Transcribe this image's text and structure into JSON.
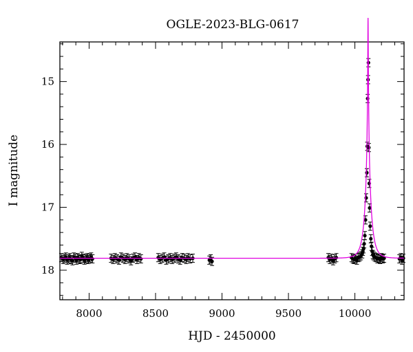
{
  "chart_data": {
    "type": "scatter",
    "title": "OGLE-2023-BLG-0617",
    "xlabel": "HJD - 2450000",
    "ylabel": "I magnitude",
    "xlim": [
      7780,
      10370
    ],
    "ylim": [
      18.47,
      14.37
    ],
    "y_inverted": true,
    "x_ticks": [
      8000,
      8500,
      9000,
      9500,
      10000
    ],
    "y_ticks": [
      15,
      16,
      17,
      18
    ],
    "grid": false,
    "colors": {
      "points": "#000000",
      "model": "#e000e0",
      "frame": "#000000"
    },
    "baseline_mag": 17.81,
    "series": [
      {
        "kind": "points",
        "x": [
          7790,
          7805,
          7815,
          7825,
          7835,
          7845,
          7855,
          7865,
          7875,
          7885,
          7895,
          7905,
          7915,
          7925,
          7935,
          7945,
          7955,
          7965,
          7975,
          7985,
          7995,
          8005,
          8015,
          8025,
          8165,
          8180,
          8195,
          8210,
          8225,
          8240,
          8255,
          8270,
          8285,
          8300,
          8315,
          8330,
          8345,
          8360,
          8375,
          8390,
          8520,
          8535,
          8550,
          8565,
          8580,
          8595,
          8610,
          8625,
          8640,
          8655,
          8670,
          8685,
          8700,
          8715,
          8730,
          8745,
          8760,
          8780,
          8905,
          8915,
          8925,
          9800,
          9812,
          9824,
          9836,
          9848,
          9860,
          9975,
          9985,
          9995,
          10005,
          10015,
          10025,
          10035,
          10045,
          10055,
          10060,
          10065,
          10070,
          10075,
          10080,
          10085,
          10090,
          10093,
          10096,
          10099,
          10102,
          10105,
          10108,
          10111,
          10115,
          10120,
          10125,
          10130,
          10135,
          10140,
          10150,
          10160,
          10170,
          10180,
          10190,
          10200,
          10210,
          10220,
          10335,
          10345,
          10355,
          10365
        ],
        "y": [
          17.8,
          17.83,
          17.81,
          17.79,
          17.84,
          17.82,
          17.8,
          17.83,
          17.85,
          17.79,
          17.81,
          17.84,
          17.8,
          17.82,
          17.83,
          17.78,
          17.81,
          17.84,
          17.82,
          17.8,
          17.83,
          17.81,
          17.79,
          17.82,
          17.81,
          17.83,
          17.8,
          17.82,
          17.84,
          17.79,
          17.81,
          17.83,
          17.8,
          17.82,
          17.85,
          17.81,
          17.79,
          17.83,
          17.8,
          17.82,
          17.8,
          17.83,
          17.81,
          17.79,
          17.84,
          17.82,
          17.8,
          17.83,
          17.81,
          17.79,
          17.82,
          17.84,
          17.8,
          17.81,
          17.83,
          17.8,
          17.82,
          17.81,
          17.84,
          17.82,
          17.86,
          17.8,
          17.83,
          17.81,
          17.85,
          17.82,
          17.8,
          17.8,
          17.82,
          17.83,
          17.81,
          17.84,
          17.8,
          17.79,
          17.77,
          17.74,
          17.7,
          17.66,
          17.58,
          17.45,
          17.2,
          16.85,
          16.45,
          16.03,
          15.27,
          14.97,
          14.7,
          16.05,
          16.62,
          17.01,
          17.3,
          17.5,
          17.62,
          17.7,
          17.75,
          17.77,
          17.79,
          17.8,
          17.82,
          17.81,
          17.83,
          17.8,
          17.82,
          17.81,
          17.82,
          17.8,
          17.84,
          17.81
        ]
      },
      {
        "kind": "model",
        "t0": 10099,
        "u0": 0.0296,
        "tE": 46,
        "baseline": 17.81
      }
    ]
  }
}
